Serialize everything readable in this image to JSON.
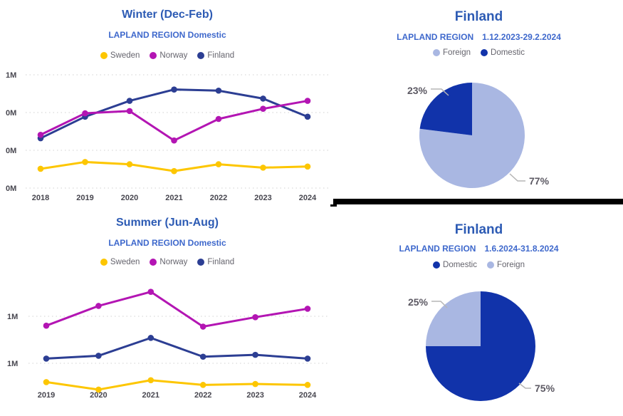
{
  "colors": {
    "sweden": "#FDC600",
    "norway": "#B315B3",
    "finland": "#2C3E93",
    "pie_dark": "#1133AA",
    "pie_light": "#A9B7E2",
    "title_blue": "#2D5BB4",
    "subtitle_blue": "#3E68CC",
    "axis_label": "#47464F",
    "legend_text": "#65646D",
    "gridline": "#D9D9D9",
    "pct_label": "#5C5963",
    "leader_line": "#B5B5B5",
    "divider": "#000000"
  },
  "chart_data": [
    {
      "id": "winter",
      "type": "line",
      "title": "Winter (Dec-Feb)",
      "subtitle": "LAPLAND REGION Domestic",
      "categories": [
        "2018",
        "2019",
        "2020",
        "2021",
        "2022",
        "2023",
        "2024"
      ],
      "series": [
        {
          "name": "Sweden",
          "color": "#FDC600",
          "values": [
            0.17,
            0.23,
            0.21,
            0.15,
            0.21,
            0.18,
            0.19
          ]
        },
        {
          "name": "Norway",
          "color": "#B315B3",
          "values": [
            0.47,
            0.66,
            0.68,
            0.42,
            0.61,
            0.7,
            0.77
          ]
        },
        {
          "name": "Finland",
          "color": "#2C3E93",
          "values": [
            0.44,
            0.63,
            0.77,
            0.87,
            0.86,
            0.79,
            0.63
          ]
        }
      ],
      "values_unit": "millions of overnight stays (estimated from pixels)",
      "y_gridlines": [
        {
          "value": 1.0,
          "label": "1M"
        },
        {
          "value": 0.6667,
          "label": "0M"
        },
        {
          "value": 0.3333,
          "label": "0M"
        },
        {
          "value": 0.0,
          "label": "0M"
        }
      ],
      "ylim": [
        0,
        1.15
      ],
      "grid": "dotted",
      "legend_position": "top"
    },
    {
      "id": "winter_pie",
      "type": "pie",
      "title": "Finland",
      "subtitle_region": "LAPLAND REGION",
      "subtitle_period": "1.12.2023-29.2.2024",
      "slices": [
        {
          "label": "Foreign",
          "pct": 77,
          "color": "#A9B7E2",
          "data_label": "77%"
        },
        {
          "label": "Domestic",
          "pct": 23,
          "color": "#1133AA",
          "data_label": "23%"
        }
      ],
      "legend_position": "top",
      "start_angle_deg": 0,
      "direction": "clockwise"
    },
    {
      "id": "summer",
      "type": "line",
      "title": "Summer (Jun-Aug)",
      "subtitle": "LAPLAND REGION Domestic",
      "categories": [
        "2019",
        "2020",
        "2021",
        "2022",
        "2023",
        "2024"
      ],
      "series": [
        {
          "name": "Sweden",
          "color": "#FDC600",
          "values": [
            0.3,
            0.22,
            0.32,
            0.27,
            0.28,
            0.27
          ]
        },
        {
          "name": "Norway",
          "color": "#B315B3",
          "values": [
            0.9,
            1.11,
            1.26,
            0.89,
            0.99,
            1.08
          ]
        },
        {
          "name": "Finland",
          "color": "#2C3E93",
          "values": [
            0.55,
            0.58,
            0.77,
            0.57,
            0.59,
            0.55
          ]
        }
      ],
      "values_unit": "millions of overnight stays (estimated from pixels)",
      "y_gridlines": [
        {
          "value": 1.0,
          "label": "1M"
        },
        {
          "value": 0.5,
          "label": "1M"
        }
      ],
      "ylim": [
        0,
        1.45
      ],
      "grid": "dotted",
      "legend_position": "top"
    },
    {
      "id": "summer_pie",
      "type": "pie",
      "title": "Finland",
      "subtitle_region": "LAPLAND REGION",
      "subtitle_period": "1.6.2024-31.8.2024",
      "slices": [
        {
          "label": "Domestic",
          "pct": 75,
          "color": "#1133AA",
          "data_label": "75%"
        },
        {
          "label": "Foreign",
          "pct": 25,
          "color": "#A9B7E2",
          "data_label": "25%"
        }
      ],
      "legend_position": "top",
      "start_angle_deg": 0,
      "direction": "clockwise"
    }
  ]
}
